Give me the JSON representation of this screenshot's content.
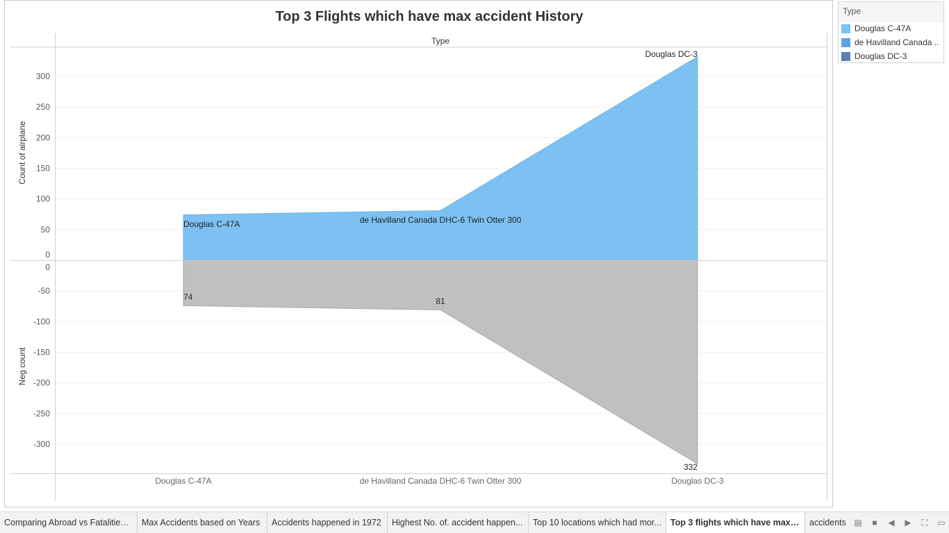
{
  "title": "Top 3 Flights which have max accident History",
  "legend": {
    "title": "Type",
    "items": [
      {
        "label": "Douglas C-47A",
        "color": "#7cc1f2"
      },
      {
        "label": "de Havilland Canada ..",
        "color": "#5da3e3"
      },
      {
        "label": "Douglas DC-3",
        "color": "#5f7fb5"
      }
    ]
  },
  "tabs": [
    {
      "label": "Comparing Abroad vs Fatalities ...",
      "active": false
    },
    {
      "label": "Max Accidents based on Years",
      "active": false
    },
    {
      "label": "Accidents happened in 1972",
      "active": false
    },
    {
      "label": "Highest No. of. accident happen...",
      "active": false
    },
    {
      "label": "Top 10 locations which had mor...",
      "active": false
    },
    {
      "label": "Top 3 flights which have max a...",
      "active": true
    },
    {
      "label": "accidents",
      "active": false
    }
  ],
  "chart_data": {
    "type": "area",
    "header_label": "Type",
    "categories": [
      "Douglas C-47A",
      "de Havilland Canada DHC-6 Twin Otter 300",
      "Douglas DC-3"
    ],
    "top": {
      "ylabel": "Count of airplane",
      "values": [
        74,
        81,
        332
      ],
      "ticks": [
        0,
        50,
        100,
        150,
        200,
        250,
        300
      ],
      "ylim": [
        0,
        330
      ],
      "color": "#7cc1f2"
    },
    "bottom": {
      "ylabel": "Neg count",
      "values": [
        -74,
        -81,
        -332
      ],
      "ticks": [
        0,
        -50,
        -100,
        -150,
        -200,
        -250,
        -300
      ],
      "ylim": [
        -350,
        0
      ],
      "color": "#c0c0c0"
    },
    "data_labels": [
      "74",
      "81",
      "332"
    ],
    "grid": true,
    "legend_position": "top-right"
  }
}
